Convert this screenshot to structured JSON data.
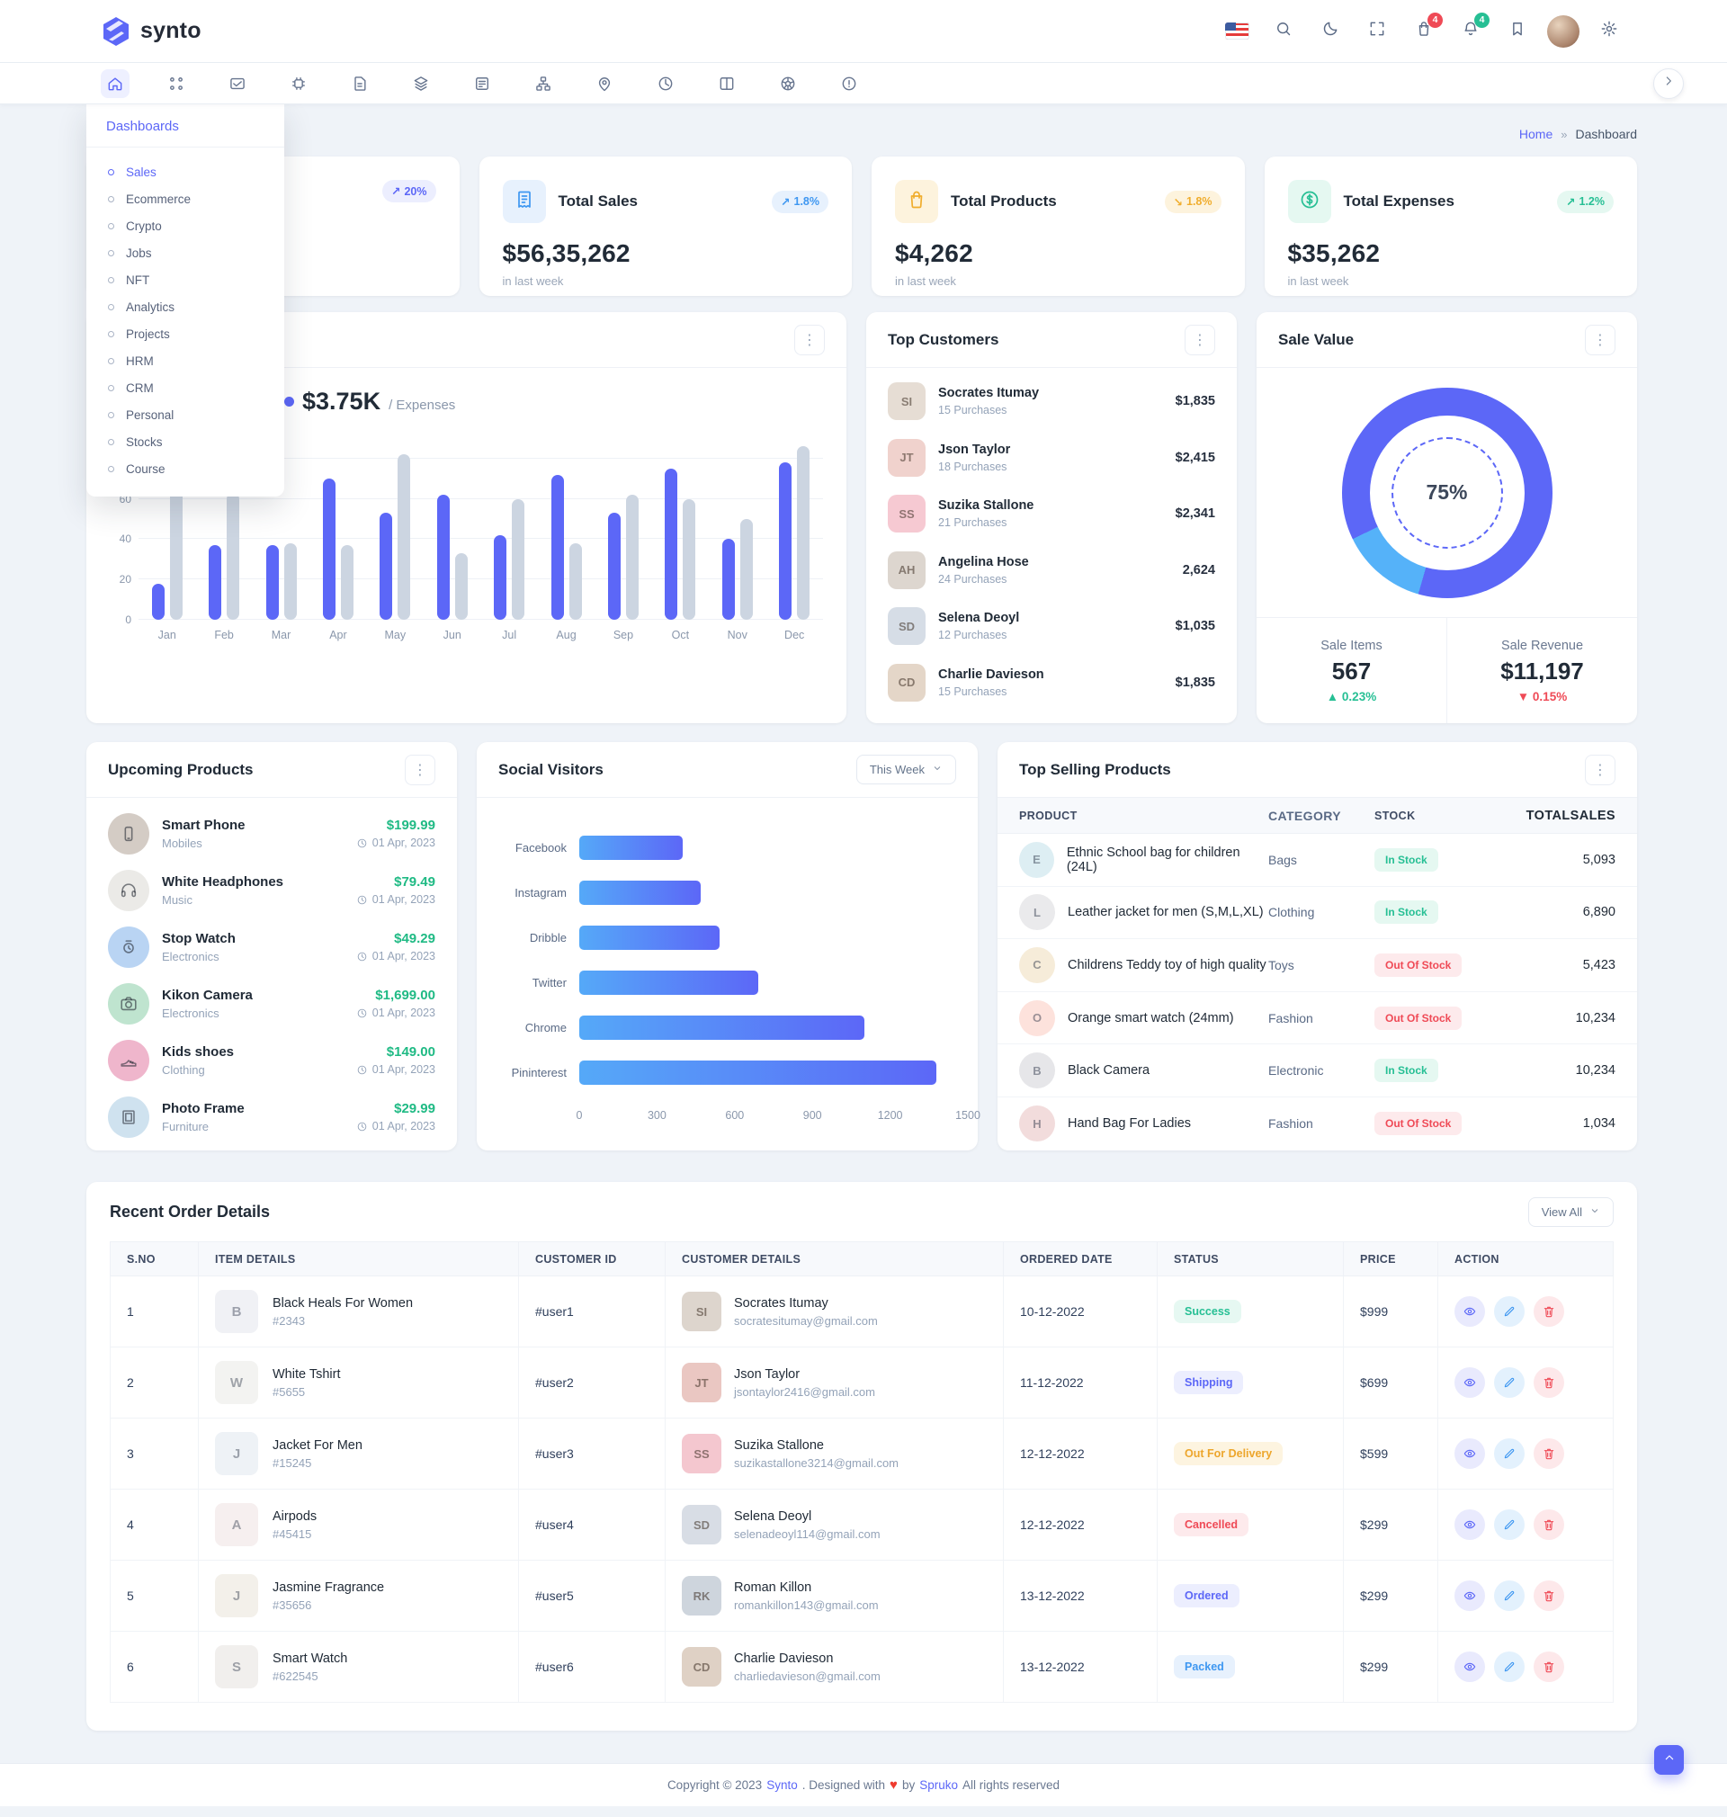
{
  "brand": {
    "name": "synto"
  },
  "topbar": {
    "cart_badge": "4",
    "bell_badge": "4"
  },
  "nav": {
    "items": [
      "home",
      "apps",
      "mail",
      "chip",
      "file",
      "layers",
      "form",
      "tree",
      "pin",
      "clockpie",
      "columns",
      "wheel",
      "alert"
    ],
    "active_index": 0
  },
  "breadcrumb": {
    "home": "Home",
    "separator": "»",
    "current": "Dashboard"
  },
  "dashboards_menu": {
    "title": "Dashboards",
    "active": "Sales",
    "items": [
      "Sales",
      "Ecommerce",
      "Crypto",
      "Jobs",
      "NFT",
      "Analytics",
      "Projects",
      "HRM",
      "CRM",
      "Personal",
      "Stocks",
      "Course"
    ]
  },
  "stat_cards": [
    {
      "badge": "20%",
      "trend": "up",
      "accent": "purple"
    },
    {
      "title": "Total Sales",
      "value": "$56,35,262",
      "subtitle": "in last week",
      "badge": "1.8%",
      "trend": "up",
      "accent": "blue",
      "icon": "receipt"
    },
    {
      "title": "Total Products",
      "value": "$4,262",
      "subtitle": "in last week",
      "badge": "1.8%",
      "trend": "down",
      "accent": "orange",
      "icon": "bag"
    },
    {
      "title": "Total Expenses",
      "value": "$35,262",
      "subtitle": "in last week",
      "badge": "1.2%",
      "trend": "up",
      "accent": "green",
      "icon": "dollar"
    }
  ],
  "overview": {
    "highlight_value": "$3.75K",
    "highlight_label": "/ Expenses",
    "chart": {
      "type": "bar",
      "categories": [
        "Jan",
        "Feb",
        "Mar",
        "Apr",
        "May",
        "Jun",
        "Jul",
        "Aug",
        "Sep",
        "Oct",
        "Nov",
        "Dec"
      ],
      "series": [
        {
          "name": "Sales",
          "color": "#5c67f7",
          "values": [
            18,
            37,
            37,
            70,
            53,
            62,
            42,
            72,
            53,
            75,
            40,
            78
          ]
        },
        {
          "name": "Expenses",
          "color": "#ccd5e1",
          "values": [
            68,
            63,
            38,
            37,
            82,
            33,
            60,
            38,
            62,
            60,
            50,
            86
          ]
        }
      ],
      "ylim": [
        0,
        88
      ],
      "yticks": [
        0,
        20,
        40,
        60,
        80
      ],
      "grid": true
    }
  },
  "top_customers": {
    "title": "Top Customers",
    "items": [
      {
        "name": "Socrates Itumay",
        "purchases": "15 Purchases",
        "amount": "$1,835",
        "initials": "SI",
        "bg": "#e6ddd4"
      },
      {
        "name": "Json Taylor",
        "purchases": "18 Purchases",
        "amount": "$2,415",
        "initials": "JT",
        "bg": "#f0d2cd"
      },
      {
        "name": "Suzika Stallone",
        "purchases": "21 Purchases",
        "amount": "$2,341",
        "initials": "SS",
        "bg": "#f6c9d2"
      },
      {
        "name": "Angelina Hose",
        "purchases": "24 Purchases",
        "amount": "2,624",
        "initials": "AH",
        "bg": "#ddd6cf"
      },
      {
        "name": "Selena Deoyl",
        "purchases": "12 Purchases",
        "amount": "$1,035",
        "initials": "SD",
        "bg": "#d6dde6"
      },
      {
        "name": "Charlie Davieson",
        "purchases": "15 Purchases",
        "amount": "$1,835",
        "initials": "CD",
        "bg": "#e4d6c8"
      }
    ]
  },
  "sale_value": {
    "title": "Sale Value",
    "percent": "75%",
    "donut": {
      "primary": "#5c67f7",
      "secondary": "#55b2f9",
      "secondary_start_deg": 196,
      "secondary_end_deg": 244
    },
    "stats": [
      {
        "label": "Sale Items",
        "value": "567",
        "delta": "0.23%",
        "direction": "up"
      },
      {
        "label": "Sale Revenue",
        "value": "$11,197",
        "delta": "0.15%",
        "direction": "down"
      }
    ]
  },
  "upcoming_products": {
    "title": "Upcoming Products",
    "items": [
      {
        "name": "Smart Phone",
        "category": "Mobiles",
        "price": "$199.99",
        "date": "01 Apr, 2023",
        "bg": "#d4ccc5",
        "glyph": "phone"
      },
      {
        "name": "White Headphones",
        "category": "Music",
        "price": "$79.49",
        "date": "01 Apr, 2023",
        "bg": "#ebeae7",
        "glyph": "headphones"
      },
      {
        "name": "Stop Watch",
        "category": "Electronics",
        "price": "$49.29",
        "date": "01 Apr, 2023",
        "bg": "#b9d4f3",
        "glyph": "watch"
      },
      {
        "name": "Kikon Camera",
        "category": "Electronics",
        "price": "$1,699.00",
        "date": "01 Apr, 2023",
        "bg": "#bfe4cf",
        "glyph": "camera"
      },
      {
        "name": "Kids shoes",
        "category": "Clothing",
        "price": "$149.00",
        "date": "01 Apr, 2023",
        "bg": "#efb6cc",
        "glyph": "shoes"
      },
      {
        "name": "Photo Frame",
        "category": "Furniture",
        "price": "$29.99",
        "date": "01 Apr, 2023",
        "bg": "#cfe2ef",
        "glyph": "frame"
      }
    ]
  },
  "social_visitors": {
    "title": "Social Visitors",
    "filter": "This Week",
    "chart": {
      "type": "bar",
      "orientation": "horizontal",
      "categories": [
        "Facebook",
        "Instagram",
        "Dribble",
        "Twitter",
        "Chrome",
        "Pininterest"
      ],
      "values": [
        400,
        470,
        540,
        690,
        1100,
        1380
      ],
      "xticks": [
        0,
        300,
        600,
        900,
        1200,
        1500
      ],
      "xlim": [
        0,
        1500
      ]
    }
  },
  "top_selling": {
    "title": "Top Selling Products",
    "columns": [
      "PRODUCT",
      "CATEGORY",
      "STOCK",
      "TOTALSALES"
    ],
    "rows": [
      {
        "product": "Ethnic School bag for children (24L)",
        "category": "Bags",
        "stock": "In Stock",
        "stock_state": "in",
        "sales": "5,093",
        "bg": "#ddeef3",
        "initial": "E"
      },
      {
        "product": "Leather jacket for men (S,M,L,XL)",
        "category": "Clothing",
        "stock": "In Stock",
        "stock_state": "in",
        "sales": "6,890",
        "bg": "#eaeaec",
        "initial": "L"
      },
      {
        "product": "Childrens Teddy toy of high quality",
        "category": "Toys",
        "stock": "Out Of Stock",
        "stock_state": "out",
        "sales": "5,423",
        "bg": "#f6ecd9",
        "initial": "C"
      },
      {
        "product": "Orange smart watch (24mm)",
        "category": "Fashion",
        "stock": "Out Of Stock",
        "stock_state": "out",
        "sales": "10,234",
        "bg": "#fde2dc",
        "initial": "O"
      },
      {
        "product": "Black Camera",
        "category": "Electronic",
        "stock": "In Stock",
        "stock_state": "in",
        "sales": "10,234",
        "bg": "#e6e6e9",
        "initial": "B"
      },
      {
        "product": "Hand Bag For Ladies",
        "category": "Fashion",
        "stock": "Out Of Stock",
        "stock_state": "out",
        "sales": "1,034",
        "bg": "#f2dcdc",
        "initial": "H"
      }
    ]
  },
  "recent_orders": {
    "title": "Recent Order Details",
    "view_all": "View All",
    "columns": [
      "S.NO",
      "ITEM DETAILS",
      "CUSTOMER ID",
      "CUSTOMER DETAILS",
      "ORDERED DATE",
      "STATUS",
      "PRICE",
      "ACTION"
    ],
    "rows": [
      {
        "sno": "1",
        "item": "Black Heals For Women",
        "item_id": "#2343",
        "customer_id": "#user1",
        "customer": "Socrates Itumay",
        "email": "socratesitumay@gmail.com",
        "date": "10-12-2022",
        "status": "Success",
        "status_key": "success",
        "price": "$999",
        "item_bg": "#f0f1f5",
        "item_initial": "B",
        "avatar_bg": "#ddd5cd"
      },
      {
        "sno": "2",
        "item": "White Tshirt",
        "item_id": "#5655",
        "customer_id": "#user2",
        "customer": "Json Taylor",
        "email": "jsontaylor2416@gmail.com",
        "date": "11-12-2022",
        "status": "Shipping",
        "status_key": "shipping",
        "price": "$699",
        "item_bg": "#f3f3f1",
        "item_initial": "W",
        "avatar_bg": "#eac7c2"
      },
      {
        "sno": "3",
        "item": "Jacket For Men",
        "item_id": "#15245",
        "customer_id": "#user3",
        "customer": "Suzika Stallone",
        "email": "suzikastallone3214@gmail.com",
        "date": "12-12-2022",
        "status": "Out For Delivery",
        "status_key": "delivery",
        "price": "$599",
        "item_bg": "#eef2f6",
        "item_initial": "J",
        "avatar_bg": "#f4c7cf"
      },
      {
        "sno": "4",
        "item": "Airpods",
        "item_id": "#45415",
        "customer_id": "#user4",
        "customer": "Selena Deoyl",
        "email": "selenadeoyl114@gmail.com",
        "date": "12-12-2022",
        "status": "Cancelled",
        "status_key": "cancelled",
        "price": "$299",
        "item_bg": "#f6efef",
        "item_initial": "A",
        "avatar_bg": "#d8dde5"
      },
      {
        "sno": "5",
        "item": "Jasmine Fragrance",
        "item_id": "#35656",
        "customer_id": "#user5",
        "customer": "Roman Killon",
        "email": "romankillon143@gmail.com",
        "date": "13-12-2022",
        "status": "Ordered",
        "status_key": "ordered",
        "price": "$299",
        "item_bg": "#f3f0ea",
        "item_initial": "J",
        "avatar_bg": "#ced5dd"
      },
      {
        "sno": "6",
        "item": "Smart Watch",
        "item_id": "#622545",
        "customer_id": "#user6",
        "customer": "Charlie Davieson",
        "email": "charliedavieson@gmail.com",
        "date": "13-12-2022",
        "status": "Packed",
        "status_key": "packed",
        "price": "$299",
        "item_bg": "#f1efed",
        "item_initial": "S",
        "avatar_bg": "#dfd1c5"
      }
    ]
  },
  "footer": {
    "prefix": "Copyright © 2023",
    "brand": "Synto",
    "middle": ". Designed with",
    "heart": "♥",
    "by": "by",
    "author": "Spruko",
    "suffix": "All rights reserved"
  },
  "colors": {
    "accent": "#5c67f7",
    "secondary": "#55b2f9",
    "success": "#26bf94",
    "danger": "#ef4a56",
    "warning": "#f0ad2d",
    "gray_bar": "#ccd5e1"
  }
}
